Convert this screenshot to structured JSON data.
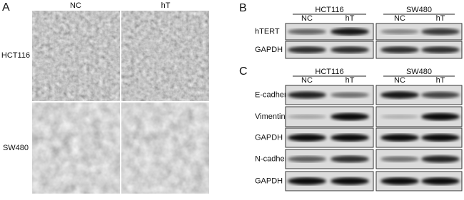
{
  "panel_a": {
    "label": "A",
    "columns": [
      "NC",
      "hT"
    ],
    "rows": [
      "HCT116",
      "SW480"
    ]
  },
  "panel_b": {
    "label": "B",
    "groups": [
      {
        "name": "HCT116",
        "conditions": [
          "NC",
          "hT"
        ]
      },
      {
        "name": "SW480",
        "conditions": [
          "NC",
          "hT"
        ]
      }
    ],
    "rows": [
      "hTERT",
      "GAPDH"
    ]
  },
  "panel_c": {
    "label": "C",
    "groups": [
      {
        "name": "HCT116",
        "conditions": [
          "NC",
          "hT"
        ]
      },
      {
        "name": "SW480",
        "conditions": [
          "NC",
          "hT"
        ]
      }
    ],
    "rows": [
      "E-cadherin",
      "Vimentin",
      "GAPDH",
      "N-cadherin",
      "GAPDH"
    ]
  }
}
